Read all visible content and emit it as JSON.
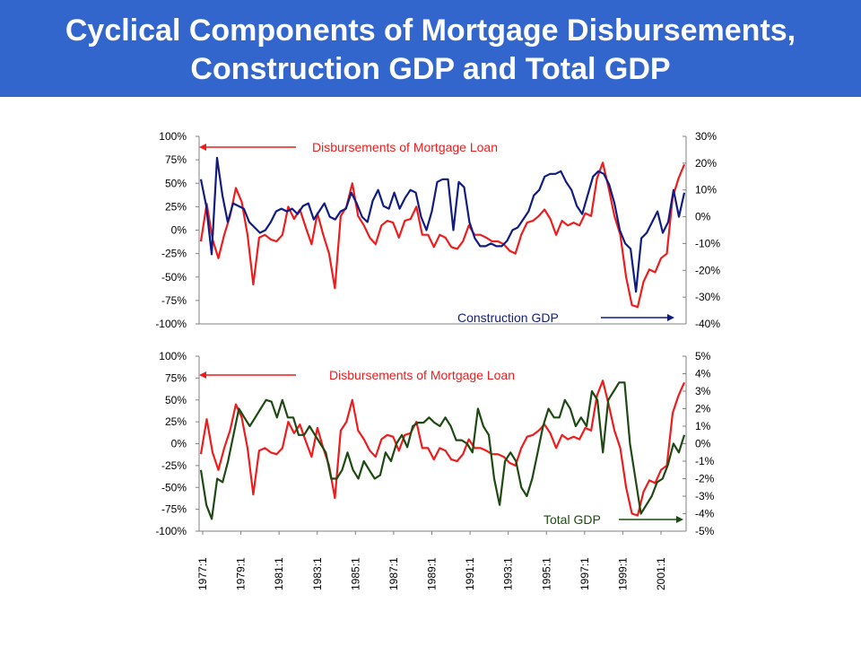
{
  "header": {
    "title_line1": "Cyclical Components of Mortgage Disbursements,",
    "title_line2": "Construction GDP and Total GDP"
  },
  "colors": {
    "banner": "#3366cc",
    "mortgage": "#ee1c1c",
    "construction": "#101c80",
    "total_gdp": "#1d4a12"
  },
  "chart_data": [
    {
      "type": "line",
      "title": "",
      "x_start": "1977:1",
      "grid": false,
      "left_axis": {
        "ylim": [
          -100,
          100
        ],
        "ticks": [
          "100%",
          "75%",
          "50%",
          "25%",
          "0%",
          "-25%",
          "-50%",
          "-75%",
          "-100%"
        ]
      },
      "right_axis": {
        "ylim": [
          -40,
          30
        ],
        "ticks": [
          "30%",
          "20%",
          "10%",
          "0%",
          "-10%",
          "-20%",
          "-30%",
          "-40%"
        ]
      },
      "annotations": {
        "left": "Disbursements of Mortgage Loan",
        "right": "Construction GDP"
      },
      "series": [
        {
          "name": "Disbursements of Mortgage Loan",
          "axis": "left",
          "values": [
            -12,
            28,
            -10,
            -30,
            -5,
            15,
            45,
            30,
            -5,
            -58,
            -8,
            -5,
            -10,
            -12,
            -5,
            25,
            12,
            22,
            3,
            -15,
            18,
            -5,
            -25,
            -62,
            15,
            25,
            50,
            15,
            5,
            -8,
            -15,
            5,
            10,
            8,
            -8,
            10,
            12,
            25,
            -5,
            -5,
            -18,
            -5,
            -8,
            -18,
            -20,
            -12,
            5,
            -5,
            -5,
            -8,
            -12,
            -12,
            -15,
            -22,
            -25,
            -5,
            8,
            10,
            15,
            22,
            12,
            -5,
            10,
            5,
            8,
            5,
            18,
            15,
            55,
            72,
            45,
            15,
            -5,
            -50,
            -80,
            -82,
            -55,
            -42,
            -45,
            -30,
            -25,
            35,
            55,
            70
          ]
        },
        {
          "name": "Construction GDP",
          "axis": "right",
          "values": [
            14,
            4,
            -14,
            22,
            8,
            -2,
            5,
            4,
            3,
            -2,
            -4,
            -6,
            -5,
            -2,
            2,
            3,
            2,
            3,
            1,
            4,
            5,
            -1,
            2,
            5,
            0,
            -1,
            2,
            3,
            9,
            5,
            0,
            -2,
            6,
            10,
            4,
            3,
            9,
            3,
            7,
            10,
            9,
            0,
            -5,
            2,
            13,
            14,
            14,
            -5,
            13,
            11,
            -2,
            -8,
            -11,
            -11,
            -10,
            -11,
            -11,
            -9,
            -5,
            -4,
            -1,
            2,
            8,
            10,
            15,
            16,
            16,
            17,
            13,
            10,
            4,
            1,
            8,
            15,
            17,
            16,
            12,
            5,
            -5,
            -10,
            -12,
            -28,
            -8,
            -6,
            -2,
            2,
            -6,
            -2,
            10,
            0,
            9
          ]
        }
      ]
    },
    {
      "type": "line",
      "title": "",
      "x_start": "1977:1",
      "grid": false,
      "left_axis": {
        "ylim": [
          -100,
          100
        ],
        "ticks": [
          "100%",
          "75%",
          "50%",
          "25%",
          "0%",
          "-25%",
          "-50%",
          "-75%",
          "-100%"
        ]
      },
      "right_axis": {
        "ylim": [
          -5,
          5
        ],
        "ticks": [
          "5%",
          "4%",
          "3%",
          "2%",
          "1%",
          "0%",
          "-1%",
          "-2%",
          "-3%",
          "-4%",
          "-5%"
        ]
      },
      "annotations": {
        "left": "Disbursements of Mortgage Loan",
        "right": "Total GDP"
      },
      "x_tick_labels": [
        "1977:1",
        "1979:1",
        "1981:1",
        "1983:1",
        "1985:1",
        "1987:1",
        "1989:1",
        "1991:1",
        "1993:1",
        "1995:1",
        "1997:1",
        "1999:1",
        "2001:1"
      ],
      "series": [
        {
          "name": "Disbursements of Mortgage Loan",
          "axis": "left",
          "values": [
            -12,
            28,
            -10,
            -30,
            -5,
            15,
            45,
            30,
            -5,
            -58,
            -8,
            -5,
            -10,
            -12,
            -5,
            25,
            12,
            22,
            3,
            -15,
            18,
            -5,
            -25,
            -62,
            15,
            25,
            50,
            15,
            5,
            -8,
            -15,
            5,
            10,
            8,
            -8,
            10,
            12,
            25,
            -5,
            -5,
            -18,
            -5,
            -8,
            -18,
            -20,
            -12,
            5,
            -5,
            -5,
            -8,
            -12,
            -12,
            -15,
            -22,
            -25,
            -5,
            8,
            10,
            15,
            22,
            12,
            -5,
            10,
            5,
            8,
            5,
            18,
            15,
            55,
            72,
            45,
            15,
            -5,
            -50,
            -80,
            -82,
            -55,
            -42,
            -45,
            -30,
            -25,
            35,
            55,
            70
          ]
        },
        {
          "name": "Total GDP",
          "axis": "right",
          "values": [
            -1.5,
            -3.5,
            -4.3,
            -2,
            -2.2,
            -1,
            0.5,
            2,
            1.5,
            1,
            1.5,
            2,
            2.5,
            2.4,
            1.5,
            2.5,
            1.5,
            1.5,
            0.5,
            0.5,
            1,
            0.5,
            0,
            -0.5,
            -2,
            -2,
            -1.5,
            -0.5,
            -1.5,
            -2,
            -1,
            -1.5,
            -2,
            -1.8,
            -0.5,
            -1,
            0,
            0.5,
            -0.2,
            1,
            1.2,
            1.2,
            1.5,
            1.2,
            1,
            1.5,
            1,
            0.2,
            0.2,
            0,
            -0.5,
            2,
            1,
            0.5,
            -2,
            -3.5,
            -1,
            -0.5,
            -1,
            -2.5,
            -3,
            -2,
            -0.5,
            1,
            2,
            1.5,
            1.5,
            2.5,
            2,
            1,
            1.5,
            1,
            3,
            2.5,
            -0.5,
            2.5,
            3,
            3.5,
            3.5,
            0,
            -2,
            -4,
            -3.5,
            -3,
            -2.2,
            -2,
            -1.2,
            0,
            -0.5,
            0.5
          ]
        }
      ]
    }
  ]
}
